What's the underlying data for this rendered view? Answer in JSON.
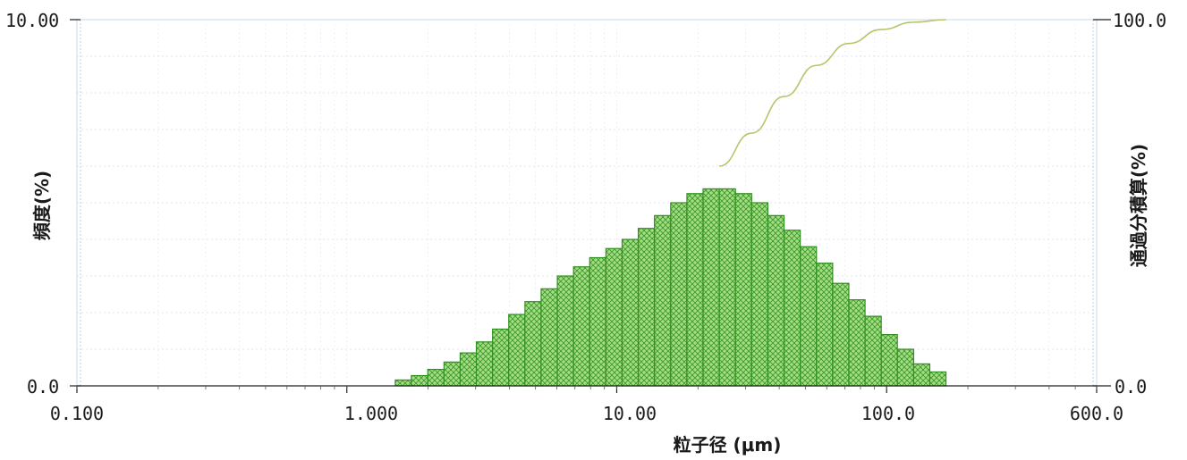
{
  "chart_data": {
    "type": "bar",
    "xlabel": "粒子径 (μm)",
    "ylabel_left": "頻度(%)",
    "ylabel_right": "通過分積算(%)",
    "x_scale": "log",
    "xlim": [
      0.1,
      600.0
    ],
    "ylim_left": [
      0.0,
      10.0
    ],
    "ylim_right": [
      0.0,
      100.0
    ],
    "x_tick_labels": [
      "0.100",
      "1.000",
      "10.00",
      "100.0",
      "600.0"
    ],
    "y_left_tick_labels": [
      "10.00",
      "0.0"
    ],
    "y_right_tick_labels": [
      "100.0",
      "0.0"
    ],
    "grid": true,
    "colors": {
      "bar_fill": "#9bd37a",
      "bar_edge": "#2f8f1f",
      "hatch": "#3a9a28",
      "curve": "#b9c46a",
      "grid": "#b8cfe6"
    },
    "series": [
      {
        "name": "頻度",
        "kind": "histogram",
        "bins": [
          {
            "x0": 1.512,
            "x1": 1.734,
            "y": 0.16
          },
          {
            "x0": 1.734,
            "x1": 1.995,
            "y": 0.28
          },
          {
            "x0": 1.995,
            "x1": 2.291,
            "y": 0.45
          },
          {
            "x0": 2.291,
            "x1": 2.63,
            "y": 0.65
          },
          {
            "x0": 2.63,
            "x1": 3.02,
            "y": 0.9
          },
          {
            "x0": 3.02,
            "x1": 3.467,
            "y": 1.2
          },
          {
            "x0": 3.467,
            "x1": 3.981,
            "y": 1.55
          },
          {
            "x0": 3.981,
            "x1": 4.571,
            "y": 1.95
          },
          {
            "x0": 4.571,
            "x1": 5.248,
            "y": 2.3
          },
          {
            "x0": 5.248,
            "x1": 6.026,
            "y": 2.65
          },
          {
            "x0": 6.026,
            "x1": 6.918,
            "y": 3.0
          },
          {
            "x0": 6.918,
            "x1": 7.943,
            "y": 3.25
          },
          {
            "x0": 7.943,
            "x1": 9.12,
            "y": 3.5
          },
          {
            "x0": 9.12,
            "x1": 10.47,
            "y": 3.75
          },
          {
            "x0": 10.47,
            "x1": 12.02,
            "y": 4.0
          },
          {
            "x0": 12.02,
            "x1": 13.8,
            "y": 4.3
          },
          {
            "x0": 13.8,
            "x1": 15.85,
            "y": 4.65
          },
          {
            "x0": 15.85,
            "x1": 18.2,
            "y": 5.0
          },
          {
            "x0": 18.2,
            "x1": 20.89,
            "y": 5.25
          },
          {
            "x0": 20.89,
            "x1": 23.99,
            "y": 5.38
          },
          {
            "x0": 23.99,
            "x1": 27.54,
            "y": 5.38
          },
          {
            "x0": 27.54,
            "x1": 31.62,
            "y": 5.25
          },
          {
            "x0": 31.62,
            "x1": 36.31,
            "y": 5.0
          },
          {
            "x0": 36.31,
            "x1": 41.69,
            "y": 4.65
          },
          {
            "x0": 41.69,
            "x1": 47.86,
            "y": 4.25
          },
          {
            "x0": 47.86,
            "x1": 54.95,
            "y": 3.8
          },
          {
            "x0": 54.95,
            "x1": 63.1,
            "y": 3.35
          },
          {
            "x0": 63.1,
            "x1": 72.44,
            "y": 2.8
          },
          {
            "x0": 72.44,
            "x1": 83.18,
            "y": 2.35
          },
          {
            "x0": 83.18,
            "x1": 95.5,
            "y": 1.9
          },
          {
            "x0": 95.5,
            "x1": 109.6,
            "y": 1.4
          },
          {
            "x0": 109.6,
            "x1": 125.9,
            "y": 1.0
          },
          {
            "x0": 125.9,
            "x1": 144.5,
            "y": 0.6
          },
          {
            "x0": 144.5,
            "x1": 165.9,
            "y": 0.38
          }
        ]
      },
      {
        "name": "通過分積算",
        "kind": "line",
        "axis": "right",
        "points": [
          {
            "x": 23.99,
            "y": 60.0
          },
          {
            "x": 31.62,
            "y": 69.0
          },
          {
            "x": 41.69,
            "y": 79.0
          },
          {
            "x": 54.95,
            "y": 87.5
          },
          {
            "x": 72.44,
            "y": 93.5
          },
          {
            "x": 95.5,
            "y": 97.3
          },
          {
            "x": 125.9,
            "y": 99.3
          },
          {
            "x": 165.9,
            "y": 100.0
          }
        ]
      }
    ]
  }
}
